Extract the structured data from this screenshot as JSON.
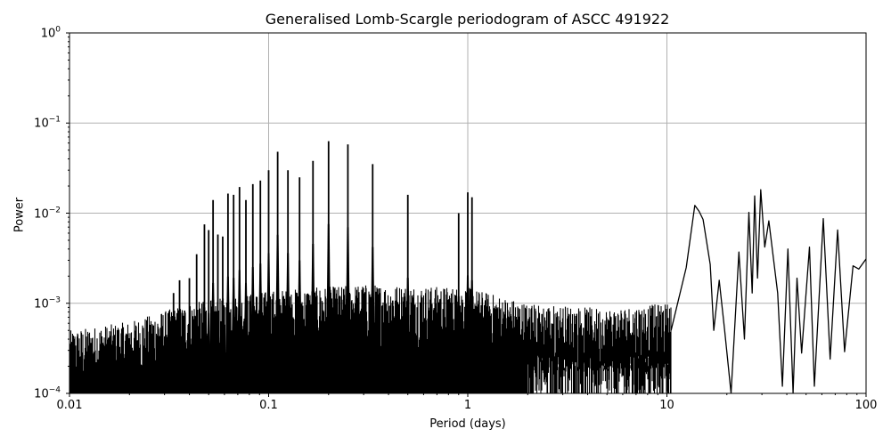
{
  "chart_data": {
    "type": "line",
    "title": "Generalised Lomb-Scargle periodogram of ASCC 491922",
    "xlabel": "Period (days)",
    "ylabel": "Power",
    "xscale": "log",
    "yscale": "log",
    "xlim": [
      0.01,
      100
    ],
    "ylim": [
      0.0001,
      1
    ],
    "grid": true,
    "x_ticks": [
      "0.01",
      "0.1",
      "1",
      "10",
      "100"
    ],
    "y_ticks": [
      {
        "base": "10",
        "exp": "0"
      },
      {
        "base": "10",
        "exp": "−1"
      },
      {
        "base": "10",
        "exp": "−2"
      },
      {
        "base": "10",
        "exp": "−3"
      },
      {
        "base": "10",
        "exp": "−4"
      }
    ],
    "line_color": "#000000",
    "grid_color": "#b0b0b0",
    "noise_floor": [
      {
        "period": 0.01,
        "power": 0.0004
      },
      {
        "period": 0.02,
        "power": 0.0005
      },
      {
        "period": 0.04,
        "power": 0.0008
      },
      {
        "period": 0.1,
        "power": 0.0011
      },
      {
        "period": 0.3,
        "power": 0.0013
      },
      {
        "period": 1.0,
        "power": 0.0012
      },
      {
        "period": 2.0,
        "power": 0.0008
      },
      {
        "period": 5.0,
        "power": 0.0007
      },
      {
        "period": 10.0,
        "power": 0.0008
      }
    ],
    "peaks": [
      {
        "period": 0.0333,
        "power": 0.0013
      },
      {
        "period": 0.0357,
        "power": 0.0018
      },
      {
        "period": 0.04,
        "power": 0.0019
      },
      {
        "period": 0.0435,
        "power": 0.0035
      },
      {
        "period": 0.0476,
        "power": 0.0075
      },
      {
        "period": 0.05,
        "power": 0.0065
      },
      {
        "period": 0.0526,
        "power": 0.014
      },
      {
        "period": 0.0556,
        "power": 0.0058
      },
      {
        "period": 0.0588,
        "power": 0.0055
      },
      {
        "period": 0.0625,
        "power": 0.0165
      },
      {
        "period": 0.0667,
        "power": 0.016
      },
      {
        "period": 0.0714,
        "power": 0.0195
      },
      {
        "period": 0.0769,
        "power": 0.014
      },
      {
        "period": 0.0833,
        "power": 0.021
      },
      {
        "period": 0.0909,
        "power": 0.023
      },
      {
        "period": 0.1,
        "power": 0.03
      },
      {
        "period": 0.111,
        "power": 0.048
      },
      {
        "period": 0.125,
        "power": 0.03
      },
      {
        "period": 0.143,
        "power": 0.025
      },
      {
        "period": 0.167,
        "power": 0.038
      },
      {
        "period": 0.2,
        "power": 0.063
      },
      {
        "period": 0.25,
        "power": 0.058
      },
      {
        "period": 0.333,
        "power": 0.035
      },
      {
        "period": 0.5,
        "power": 0.016
      },
      {
        "period": 0.9,
        "power": 0.01
      },
      {
        "period": 1.0,
        "power": 0.017
      },
      {
        "period": 1.05,
        "power": 0.015
      }
    ],
    "long_period_curve": [
      {
        "period": 10.5,
        "power": 0.0005
      },
      {
        "period": 12.5,
        "power": 0.0025
      },
      {
        "period": 13.8,
        "power": 0.0122
      },
      {
        "period": 14.5,
        "power": 0.0105
      },
      {
        "period": 15.2,
        "power": 0.0085
      },
      {
        "period": 16.5,
        "power": 0.0027
      },
      {
        "period": 17.2,
        "power": 0.0005
      },
      {
        "period": 18.3,
        "power": 0.0018
      },
      {
        "period": 19.5,
        "power": 0.0005
      },
      {
        "period": 21.0,
        "power": 0.0001
      },
      {
        "period": 23.0,
        "power": 0.0037
      },
      {
        "period": 24.5,
        "power": 0.0004
      },
      {
        "period": 25.8,
        "power": 0.0102
      },
      {
        "period": 26.8,
        "power": 0.0013
      },
      {
        "period": 27.6,
        "power": 0.0155
      },
      {
        "period": 28.5,
        "power": 0.0019
      },
      {
        "period": 29.6,
        "power": 0.0182
      },
      {
        "period": 31.0,
        "power": 0.0042
      },
      {
        "period": 32.5,
        "power": 0.0082
      },
      {
        "period": 36.0,
        "power": 0.0013
      },
      {
        "period": 38.0,
        "power": 0.00012
      },
      {
        "period": 40.5,
        "power": 0.004
      },
      {
        "period": 43.0,
        "power": 0.0001
      },
      {
        "period": 45.0,
        "power": 0.0019
      },
      {
        "period": 47.5,
        "power": 0.00028
      },
      {
        "period": 52.0,
        "power": 0.0042
      },
      {
        "period": 55.0,
        "power": 0.00012
      },
      {
        "period": 61.0,
        "power": 0.0087
      },
      {
        "period": 66.0,
        "power": 0.00024
      },
      {
        "period": 72.0,
        "power": 0.0065
      },
      {
        "period": 78.0,
        "power": 0.00029
      },
      {
        "period": 86.0,
        "power": 0.0026
      },
      {
        "period": 92.0,
        "power": 0.0024
      },
      {
        "period": 100.0,
        "power": 0.0031
      }
    ]
  }
}
